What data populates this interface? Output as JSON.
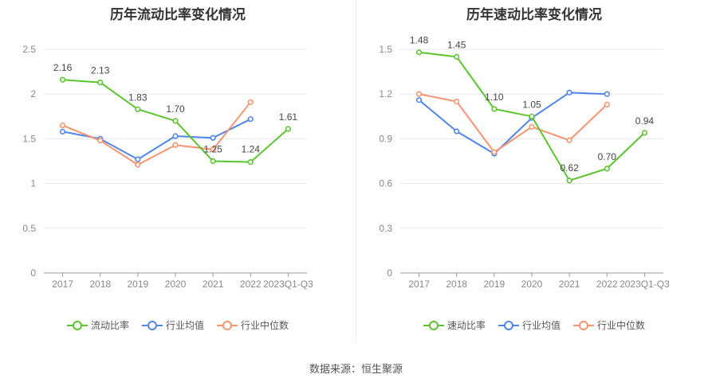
{
  "source_label": "数据来源：恒生聚源",
  "colors": {
    "main": "#5cc42f",
    "avg": "#4f86e8",
    "median": "#f5946f",
    "grid": "#e6e6f0",
    "axis": "#888888",
    "text": "#555555"
  },
  "chart_data": [
    {
      "type": "line",
      "title": "历年流动比率变化情况",
      "categories": [
        "2017",
        "2018",
        "2019",
        "2020",
        "2021",
        "2022",
        "2023Q1-Q3"
      ],
      "ylim": [
        0,
        2.5
      ],
      "yticks": [
        "0",
        "0.5",
        "1",
        "1.5",
        "2",
        "2.5"
      ],
      "ytick_values": [
        0,
        0.5,
        1,
        1.5,
        2,
        2.5
      ],
      "series": [
        {
          "name": "流动比率",
          "color_key": "main",
          "values": [
            2.16,
            2.13,
            1.83,
            1.7,
            1.25,
            1.24,
            1.61
          ],
          "labels": [
            "2.16",
            "2.13",
            "1.83",
            "1.70",
            "1.25",
            "1.24",
            "1.61"
          ]
        },
        {
          "name": "行业均值",
          "color_key": "avg",
          "values": [
            1.58,
            1.5,
            1.27,
            1.53,
            1.51,
            1.72,
            null
          ]
        },
        {
          "name": "行业中位数",
          "color_key": "median",
          "values": [
            1.65,
            1.48,
            1.21,
            1.43,
            1.38,
            1.91,
            null
          ]
        }
      ]
    },
    {
      "type": "line",
      "title": "历年速动比率变化情况",
      "categories": [
        "2017",
        "2018",
        "2019",
        "2020",
        "2021",
        "2022",
        "2023Q1-Q3"
      ],
      "ylim": [
        0,
        1.5
      ],
      "yticks": [
        "0",
        "0.3",
        "0.6",
        "0.9",
        "1.2",
        "1.5"
      ],
      "ytick_values": [
        0,
        0.3,
        0.6,
        0.9,
        1.2,
        1.5
      ],
      "series": [
        {
          "name": "速动比率",
          "color_key": "main",
          "values": [
            1.48,
            1.45,
            1.1,
            1.05,
            0.62,
            0.7,
            0.94
          ],
          "labels": [
            "1.48",
            "1.45",
            "1.10",
            "1.05",
            "0.62",
            "0.70",
            "0.94"
          ]
        },
        {
          "name": "行业均值",
          "color_key": "avg",
          "values": [
            1.16,
            0.95,
            0.8,
            1.04,
            1.21,
            1.2,
            null
          ]
        },
        {
          "name": "行业中位数",
          "color_key": "median",
          "values": [
            1.2,
            1.15,
            0.81,
            0.98,
            0.89,
            1.13,
            null
          ]
        }
      ]
    }
  ]
}
